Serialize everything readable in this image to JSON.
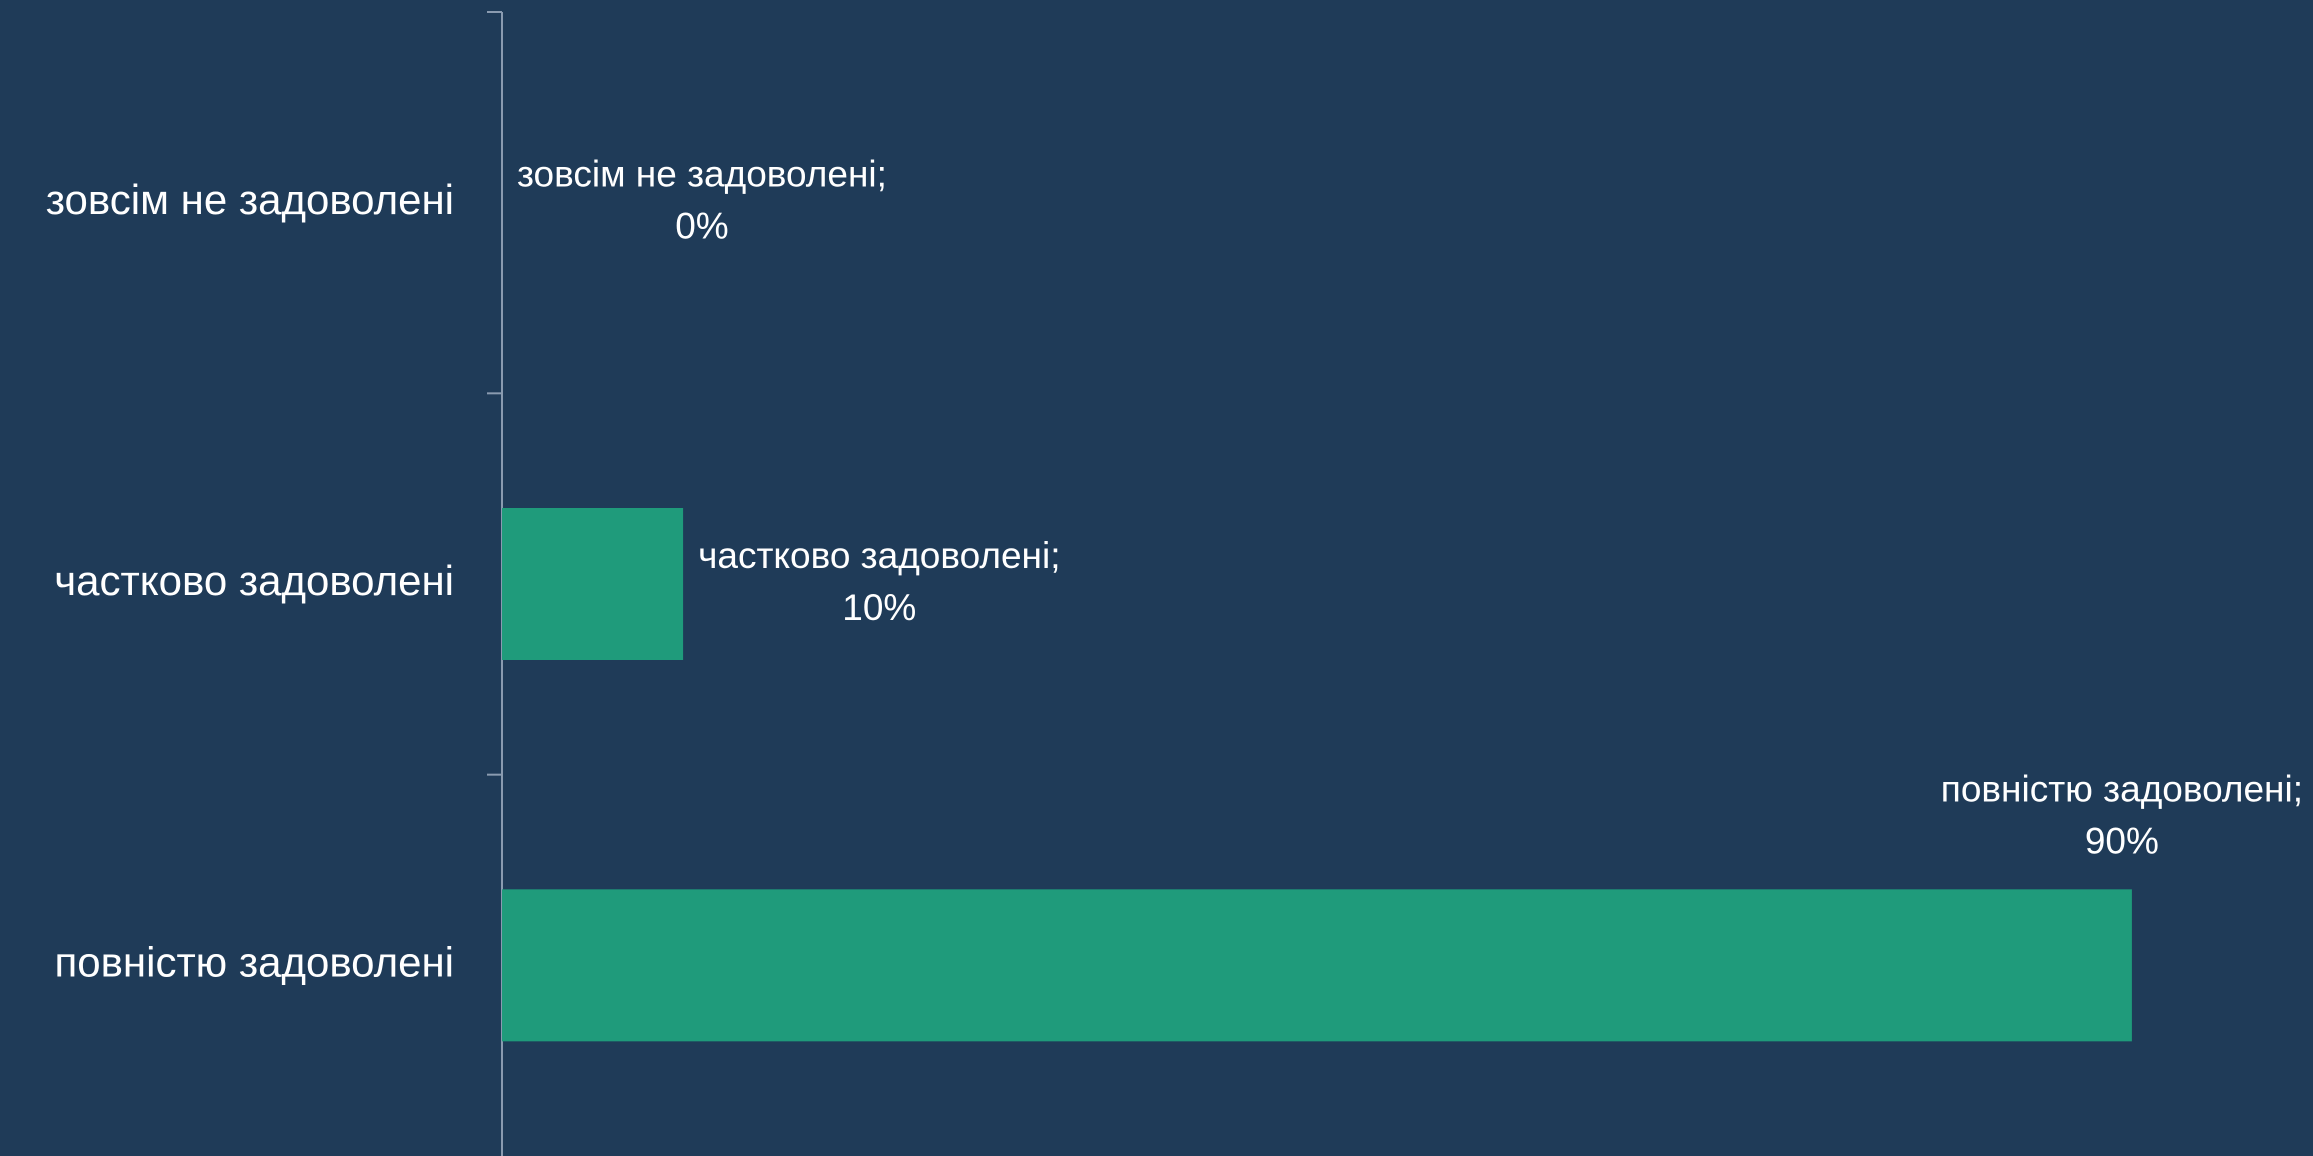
{
  "chart_data": {
    "type": "bar",
    "orientation": "horizontal",
    "categories": [
      "зовсім не задоволені",
      "частково задоволені",
      "повністю задоволені"
    ],
    "values": [
      0,
      10,
      90
    ],
    "value_labels": [
      [
        "зовсім не задоволені;",
        "0%"
      ],
      [
        "частково задоволені;",
        "10%"
      ],
      [
        "повністю задоволені;",
        "90%"
      ]
    ],
    "color": "#1f9b7b",
    "xlim": [
      0,
      100
    ]
  }
}
